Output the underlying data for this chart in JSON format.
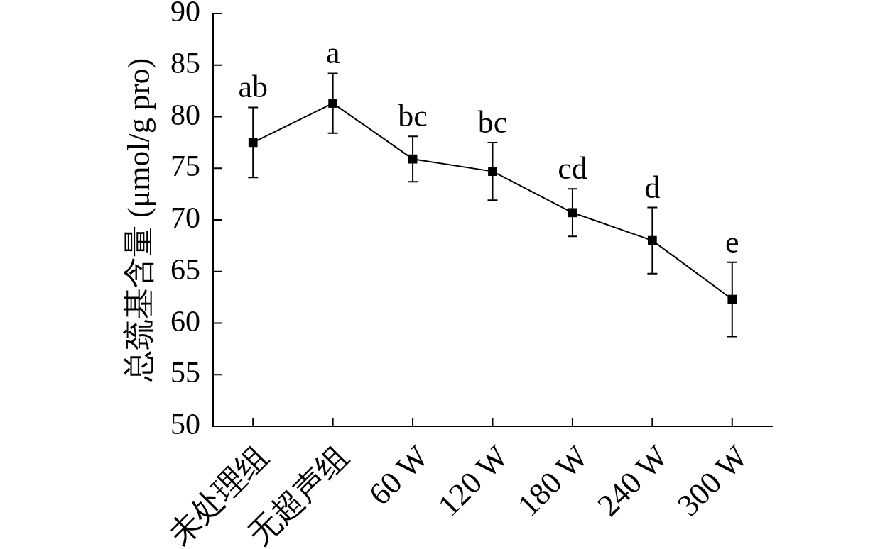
{
  "chart_data": {
    "type": "line",
    "ylabel": "总巯基含量 (μmol/g pro)",
    "categories": [
      "未处理组",
      "无超声组",
      "60 W",
      "120 W",
      "180 W",
      "240 W",
      "300 W"
    ],
    "values": [
      77.5,
      81.3,
      75.9,
      74.7,
      70.7,
      68.0,
      62.3
    ],
    "color": "#000000",
    "errors": [
      3.4,
      2.9,
      2.2,
      2.8,
      2.3,
      3.2,
      3.6
    ],
    "marker": "square",
    "line_style": "solid",
    "grid": false,
    "legend": false,
    "ylim": [
      50,
      90
    ],
    "yticks": [
      50,
      55,
      60,
      65,
      70,
      75,
      80,
      85,
      90
    ],
    "annotations": [
      {
        "text": "ab",
        "x": "未处理组",
        "y": 80.9
      },
      {
        "text": "a",
        "x": "无超声组",
        "y": 84.2
      },
      {
        "text": "bc",
        "x": "60 W",
        "y": 78.1
      },
      {
        "text": "bc",
        "x": "120 W",
        "y": 77.5
      },
      {
        "text": "cd",
        "x": "180 W",
        "y": 73.0
      },
      {
        "text": "d",
        "x": "240 W",
        "y": 71.2
      },
      {
        "text": "e",
        "x": "300 W",
        "y": 65.9
      }
    ]
  }
}
